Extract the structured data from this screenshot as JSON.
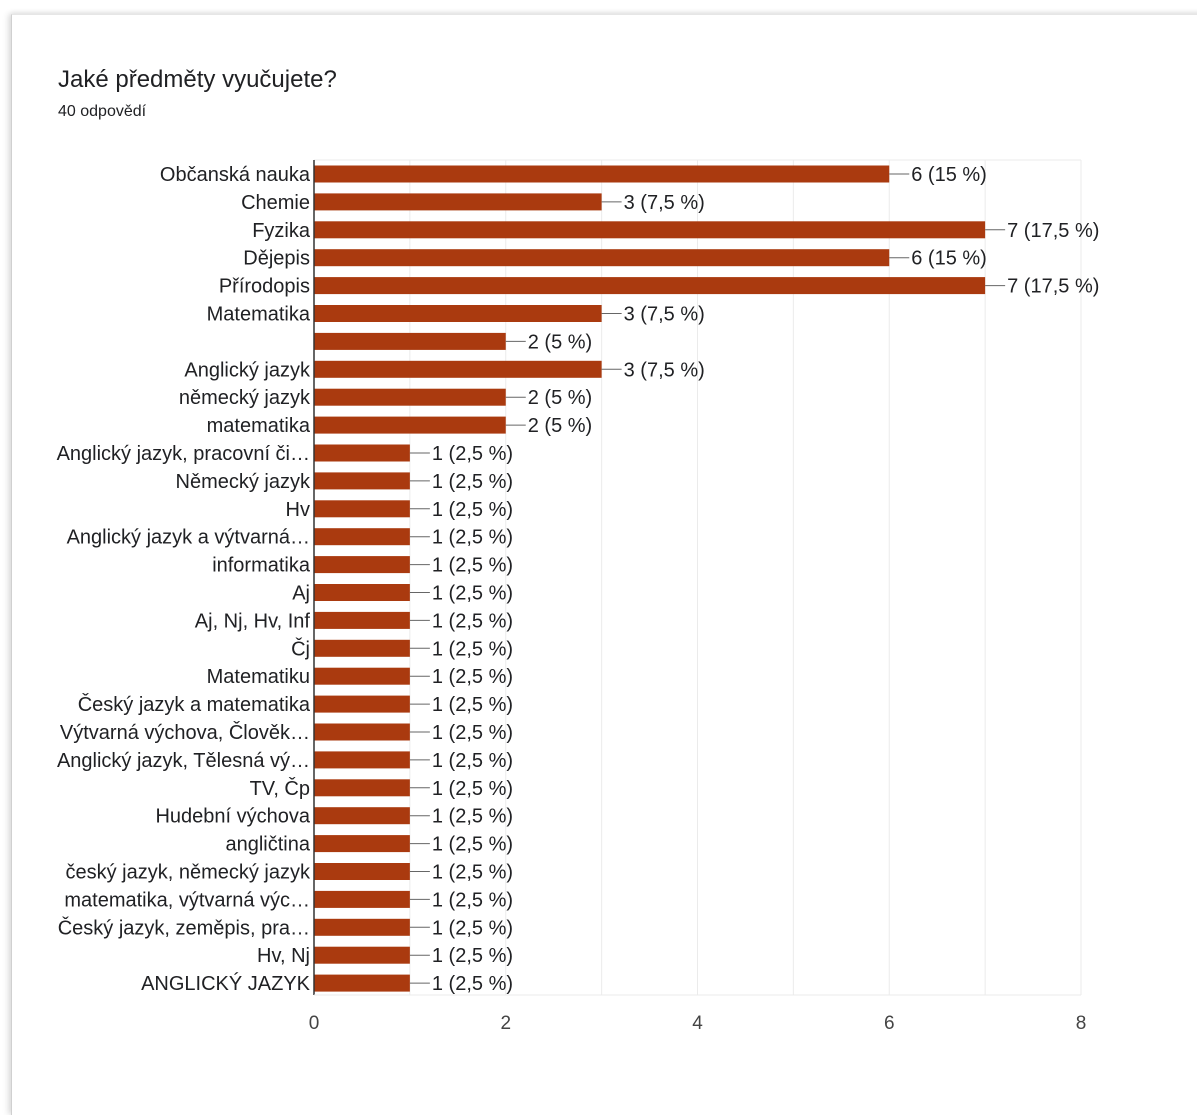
{
  "question": {
    "title": "Jaké předměty vyučujete?",
    "responses": "40 odpovědí"
  },
  "colors": {
    "bar": "#aa3a0f",
    "grid": "#ebebeb",
    "axis": "#333333",
    "text": "#202124"
  },
  "chart_data": {
    "type": "bar",
    "orientation": "horizontal",
    "xlim": [
      0,
      8
    ],
    "xticks": [
      0,
      2,
      4,
      6,
      8
    ],
    "grid": true,
    "categories": [
      "Občanská nauka",
      "Chemie",
      "Fyzika",
      "Dějepis",
      "Přírodopis",
      "Matematika",
      "",
      "Anglický jazyk",
      "německý jazyk",
      "matematika",
      "Anglický jazyk, pracovní či…",
      "Německý jazyk",
      "Hv",
      "Anglický jazyk a výtvarná…",
      "informatika",
      "Aj",
      "Aj, Nj, Hv, Inf",
      "Čj",
      "Matematiku",
      "Český jazyk a matematika",
      "Výtvarná výchova, Člověk…",
      "Anglický jazyk, Tělesná vý…",
      "TV, Čp",
      "Hudební výchova",
      "angličtina",
      "český jazyk, německý jazyk",
      "matematika, výtvarná výc…",
      "Český jazyk, zeměpis, pra…",
      "Hv, Nj",
      "ANGLICKÝ JAZYK"
    ],
    "values": [
      6,
      3,
      7,
      6,
      7,
      3,
      2,
      3,
      2,
      2,
      1,
      1,
      1,
      1,
      1,
      1,
      1,
      1,
      1,
      1,
      1,
      1,
      1,
      1,
      1,
      1,
      1,
      1,
      1,
      1
    ],
    "data_labels": [
      "6 (15 %)",
      "3 (7,5 %)",
      "7 (17,5 %)",
      "6 (15 %)",
      "7 (17,5 %)",
      "3 (7,5 %)",
      "2 (5 %)",
      "3 (7,5 %)",
      "2 (5 %)",
      "2 (5 %)",
      "1 (2,5 %)",
      "1 (2,5 %)",
      "1 (2,5 %)",
      "1 (2,5 %)",
      "1 (2,5 %)",
      "1 (2,5 %)",
      "1 (2,5 %)",
      "1 (2,5 %)",
      "1 (2,5 %)",
      "1 (2,5 %)",
      "1 (2,5 %)",
      "1 (2,5 %)",
      "1 (2,5 %)",
      "1 (2,5 %)",
      "1 (2,5 %)",
      "1 (2,5 %)",
      "1 (2,5 %)",
      "1 (2,5 %)",
      "1 (2,5 %)",
      "1 (2,5 %)"
    ]
  }
}
